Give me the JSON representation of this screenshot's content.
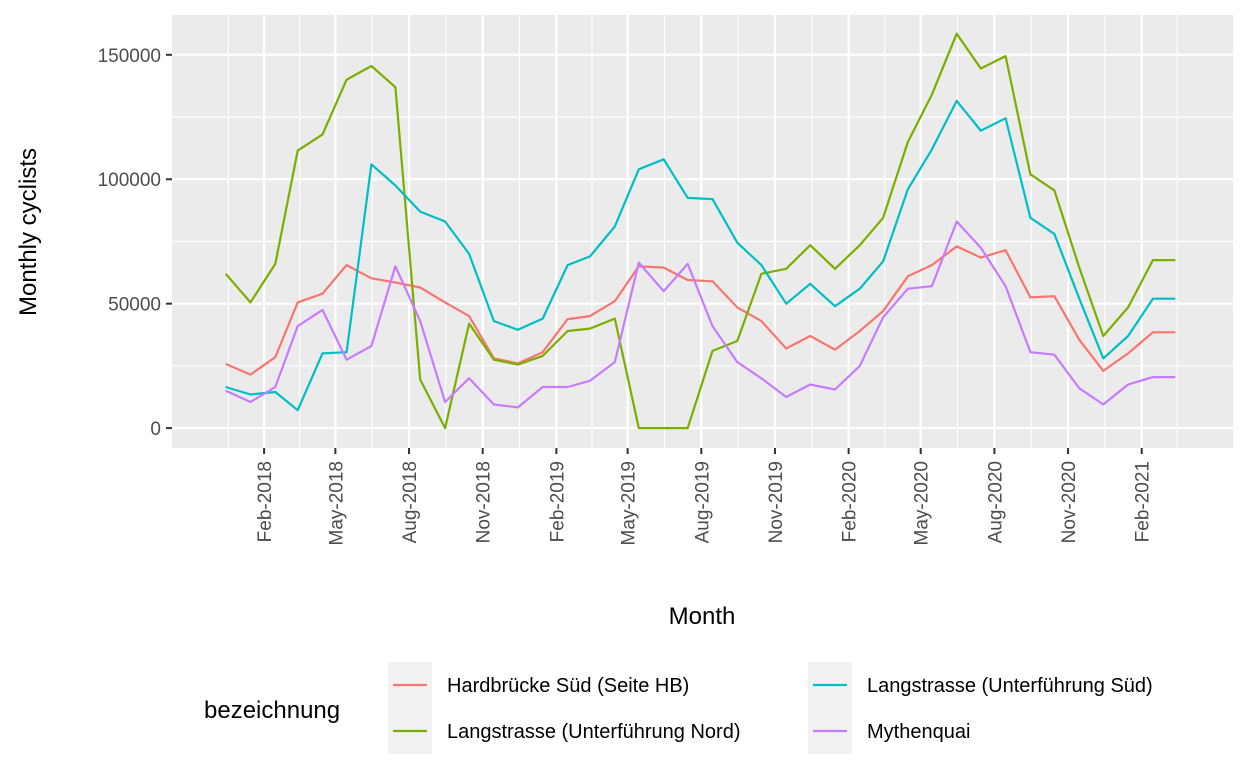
{
  "chart_data": {
    "type": "line",
    "xlabel": "Month",
    "ylabel": "Monthly cyclists",
    "legend_title": "bezeichnung",
    "legend_position": "bottom",
    "grid": true,
    "ylim": [
      -8000,
      166000
    ],
    "y_ticks": [
      0,
      50000,
      100000,
      150000
    ],
    "y_tick_labels": [
      "0",
      "50000",
      "100000",
      "150000"
    ],
    "xlim": [
      "2017-10-09",
      "2021-05-26"
    ],
    "x_ticks": [
      "2018-02-01",
      "2018-05-01",
      "2018-08-01",
      "2018-11-01",
      "2019-02-01",
      "2019-05-01",
      "2019-08-01",
      "2019-11-01",
      "2020-02-01",
      "2020-05-01",
      "2020-08-01",
      "2020-11-01",
      "2021-02-01"
    ],
    "x_tick_labels": [
      "Feb-2018",
      "May-2018",
      "Aug-2018",
      "Nov-2018",
      "Feb-2019",
      "May-2019",
      "Aug-2019",
      "Nov-2019",
      "Feb-2020",
      "May-2020",
      "Aug-2020",
      "Nov-2020",
      "Feb-2021"
    ],
    "x": [
      "2017-12-15",
      "2018-01-15",
      "2018-02-15",
      "2018-03-15",
      "2018-04-15",
      "2018-05-15",
      "2018-06-15",
      "2018-07-15",
      "2018-08-15",
      "2018-09-15",
      "2018-10-15",
      "2018-11-15",
      "2018-12-15",
      "2019-01-15",
      "2019-02-15",
      "2019-03-15",
      "2019-04-15",
      "2019-05-15",
      "2019-06-15",
      "2019-07-15",
      "2019-08-15",
      "2019-09-15",
      "2019-10-15",
      "2019-11-15",
      "2019-12-15",
      "2020-01-15",
      "2020-02-15",
      "2020-03-15",
      "2020-04-15",
      "2020-05-15",
      "2020-06-15",
      "2020-07-15",
      "2020-08-15",
      "2020-09-15",
      "2020-10-15",
      "2020-11-15",
      "2020-12-15",
      "2021-01-15",
      "2021-02-15",
      "2021-03-15"
    ],
    "series": [
      {
        "name": "Hardbrücke Süd (Seite HB)",
        "color": "#F8766D",
        "values": [
          25800,
          21500,
          28500,
          50500,
          54000,
          65500,
          60200,
          58500,
          56500,
          50500,
          45000,
          28000,
          26000,
          30500,
          43800,
          45000,
          51000,
          65000,
          64500,
          59500,
          59000,
          48500,
          43000,
          32000,
          37000,
          31500,
          39000,
          47000,
          61000,
          65500,
          73000,
          68500,
          71500,
          52500,
          53000,
          35500,
          23000,
          30000,
          38500,
          38500
        ]
      },
      {
        "name": "Langstrasse (Unterführung Nord)",
        "color": "#7CAE00",
        "values": [
          62000,
          50500,
          66000,
          111500,
          118000,
          140000,
          145500,
          137000,
          19500,
          0,
          42000,
          27500,
          25500,
          29000,
          39000,
          40000,
          44000,
          0,
          0,
          0,
          31000,
          35000,
          62000,
          64000,
          73500,
          64000,
          73500,
          84500,
          115000,
          134000,
          158500,
          144500,
          149500,
          102000,
          95500,
          64500,
          37000,
          48500,
          67500,
          67500
        ]
      },
      {
        "name": "Langstrasse (Unterführung Süd)",
        "color": "#00BFC4",
        "values": [
          16500,
          13500,
          14500,
          7200,
          30000,
          30500,
          106000,
          97500,
          87000,
          83000,
          70000,
          43000,
          39500,
          44000,
          65500,
          69000,
          81000,
          104000,
          108000,
          92500,
          92000,
          74500,
          65500,
          50000,
          58000,
          49000,
          56000,
          67000,
          96000,
          112000,
          131500,
          119500,
          124500,
          84500,
          78000,
          52000,
          28000,
          37000,
          52000,
          52000
        ]
      },
      {
        "name": "Mythenquai",
        "color": "#C77CFF",
        "values": [
          15000,
          10500,
          16500,
          41000,
          47500,
          27500,
          33000,
          65000,
          43000,
          10500,
          20000,
          9500,
          8300,
          16500,
          16500,
          19000,
          26500,
          66500,
          55000,
          66000,
          41000,
          26500,
          20000,
          12500,
          17500,
          15500,
          25000,
          44500,
          56000,
          57000,
          83000,
          72500,
          57000,
          30500,
          29500,
          16000,
          9500,
          17500,
          20500,
          20500
        ]
      }
    ]
  }
}
